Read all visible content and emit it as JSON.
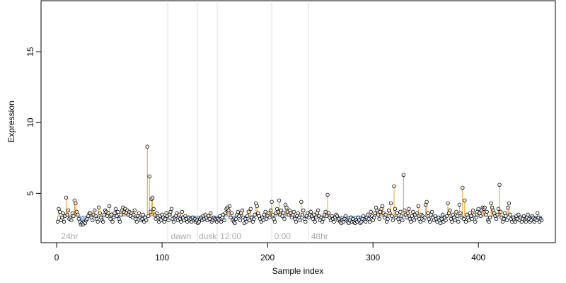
{
  "chart_data": {
    "type": "scatter",
    "xlabel": "Sample index",
    "ylabel": "Expression",
    "xlim": [
      -14.8,
      473
    ],
    "ylim": [
      1.52,
      18.6
    ],
    "xticks": [
      0,
      100,
      200,
      300,
      400
    ],
    "yticks": [
      5,
      10,
      15
    ],
    "baseline": 3.4,
    "above_color": "#e8a020",
    "below_color": "#7aa6d8",
    "point_color": "#000000",
    "vlines": [
      105.4,
      133.5,
      152.3,
      204,
      239
    ],
    "annotations": [
      {
        "label": "24hr",
        "x": 3
      },
      {
        "label": "dawn",
        "x": 107
      },
      {
        "label": "dusk",
        "x": 133.5
      },
      {
        "label": "12:00",
        "x": 153.7
      },
      {
        "label": "0:00",
        "x": 205
      },
      {
        "label": "48hr",
        "x": 240
      }
    ],
    "values": [
      3.0,
      3.9,
      3.7,
      3.1,
      3.3,
      3.6,
      3.0,
      3.4,
      4.7,
      3.5,
      3.8,
      3.2,
      3.3,
      3.1,
      3.6,
      3.4,
      4.5,
      4.3,
      3.7,
      3.5,
      3.2,
      3.0,
      2.8,
      2.9,
      2.8,
      3.0,
      2.9,
      3.1,
      3.2,
      3.4,
      3.6,
      3.6,
      3.3,
      3.1,
      3.5,
      3.8,
      3.4,
      3.2,
      3.0,
      4.0,
      3.6,
      3.3,
      3.1,
      3.0,
      3.5,
      3.8,
      3.7,
      3.4,
      3.6,
      4.1,
      3.2,
      3.5,
      3.0,
      3.3,
      3.6,
      3.9,
      3.4,
      3.7,
      3.2,
      3.0,
      3.5,
      3.8,
      4.0,
      3.7,
      3.9,
      3.6,
      3.8,
      3.5,
      3.7,
      3.4,
      3.6,
      3.3,
      3.5,
      3.8,
      3.2,
      3.0,
      3.4,
      3.6,
      3.3,
      3.1,
      3.2,
      3.5,
      3.0,
      3.3,
      3.1,
      8.3,
      3.4,
      6.2,
      3.7,
      4.6,
      4.7,
      3.9,
      3.5,
      3.2,
      3.6,
      3.3,
      3.0,
      3.4,
      3.1,
      3.5,
      3.3,
      3.0,
      3.2,
      3.6,
      3.4,
      3.1,
      3.5,
      3.7,
      3.9,
      3.2,
      3.0,
      3.3,
      3.4,
      3.6,
      3.1,
      3.5,
      3.2,
      3.0,
      3.7,
      3.3,
      3.1,
      3.4,
      3.2,
      3.0,
      3.3,
      3.1,
      3.2,
      3.0,
      3.3,
      3.1,
      3.2,
      3.0,
      3.1,
      2.9,
      3.0,
      3.2,
      3.3,
      3.1,
      3.4,
      3.2,
      3.5,
      3.3,
      3.1,
      3.4,
      3.2,
      3.6,
      3.0,
      3.1,
      3.3,
      3.2,
      3.1,
      3.0,
      3.2,
      3.1,
      3.4,
      3.0,
      3.3,
      3.5,
      3.1,
      3.6,
      3.9,
      4.0,
      3.8,
      4.1,
      3.3,
      3.6,
      3.1,
      3.0,
      2.9,
      3.2,
      3.5,
      3.7,
      3.4,
      3.1,
      3.6,
      3.8,
      3.3,
      2.9,
      3.2,
      3.0,
      3.4,
      3.7,
      3.1,
      3.9,
      3.3,
      3.0,
      3.2,
      3.5,
      4.3,
      4.1,
      3.6,
      3.4,
      3.2,
      3.0,
      3.3,
      3.1,
      3.5,
      3.7,
      3.2,
      3.4,
      3.6,
      3.3,
      3.8,
      4.4,
      3.5,
      3.2,
      3.0,
      3.6,
      3.9,
      3.7,
      4.5,
      3.5,
      3.8,
      3.4,
      3.6,
      3.2,
      4.2,
      4.0,
      3.7,
      3.5,
      3.8,
      3.6,
      3.3,
      3.5,
      3.7,
      3.2,
      3.0,
      3.4,
      3.6,
      3.3,
      3.1,
      4.4,
      3.5,
      3.8,
      3.2,
      3.0,
      3.4,
      3.6,
      3.3,
      3.5,
      3.7,
      3.4,
      3.2,
      3.5,
      3.0,
      3.3,
      3.6,
      3.8,
      3.4,
      3.1,
      3.3,
      3.0,
      3.2,
      3.5,
      3.7,
      3.4,
      4.9,
      3.6,
      3.3,
      3.1,
      3.4,
      3.2,
      3.0,
      3.3,
      3.5,
      3.4,
      3.1,
      3.2,
      3.0,
      2.9,
      3.1,
      3.0,
      3.2,
      3.4,
      3.1,
      3.0,
      2.9,
      3.1,
      3.3,
      3.0,
      3.2,
      3.0,
      2.9,
      3.1,
      3.0,
      3.3,
      3.1,
      2.9,
      3.0,
      3.2,
      3.4,
      3.1,
      3.0,
      3.3,
      3.5,
      3.2,
      3.0,
      3.7,
      3.4,
      3.1,
      3.3,
      3.6,
      4.0,
      3.8,
      3.5,
      3.2,
      3.7,
      3.9,
      4.1,
      3.6,
      3.3,
      3.5,
      3.0,
      3.2,
      3.8,
      3.6,
      4.3,
      3.4,
      3.1,
      5.5,
      3.9,
      3.3,
      3.6,
      3.2,
      3.0,
      3.7,
      3.4,
      3.1,
      6.3,
      3.8,
      3.5,
      3.3,
      3.6,
      3.9,
      3.2,
      3.0,
      3.4,
      3.7,
      3.1,
      3.5,
      3.3,
      3.6,
      4.1,
      3.2,
      3.0,
      3.5,
      3.4,
      3.1,
      3.3,
      4.2,
      4.4,
      3.6,
      3.2,
      3.0,
      3.5,
      3.7,
      3.3,
      3.1,
      3.4,
      3.2,
      3.0,
      3.3,
      3.1,
      2.9,
      3.2,
      3.5,
      3.0,
      3.3,
      3.1,
      3.4,
      4.3,
      3.6,
      3.8,
      3.2,
      3.0,
      3.5,
      3.3,
      3.1,
      3.7,
      3.4,
      3.0,
      4.2,
      3.6,
      3.3,
      5.4,
      3.2,
      4.5,
      3.0,
      3.5,
      3.3,
      3.1,
      3.6,
      3.4,
      3.2,
      3.8,
      3.5,
      3.0,
      3.3,
      3.7,
      3.9,
      3.6,
      3.4,
      3.8,
      4.0,
      3.9,
      4.0,
      3.5,
      3.7,
      3.1,
      3.0,
      3.3,
      4.3,
      4.0,
      3.8,
      3.6,
      3.4,
      3.2,
      3.5,
      3.9,
      5.6,
      3.7,
      3.3,
      3.0,
      3.2,
      3.6,
      3.4,
      3.1,
      4.0,
      4.3,
      3.5,
      3.2,
      3.0,
      3.3,
      3.1,
      3.0,
      3.4,
      3.2,
      3.5,
      3.1,
      3.3,
      3.0,
      3.2,
      3.4,
      3.1,
      3.0,
      3.3,
      3.5,
      3.2,
      3.0,
      3.1,
      3.4,
      3.3,
      3.0,
      3.2,
      3.1,
      3.6,
      3.3,
      3.0,
      3.2,
      3.1
    ]
  }
}
